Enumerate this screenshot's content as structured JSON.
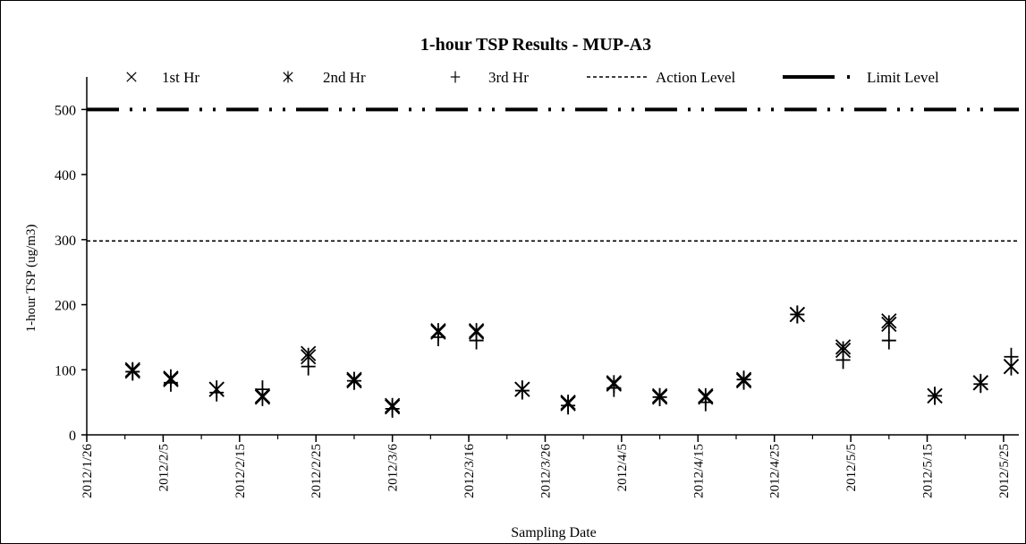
{
  "chart_data": {
    "type": "scatter",
    "title": "1-hour TSP Results - MUP-A3",
    "xlabel": "Sampling Date",
    "ylabel": "1-hour TSP (ug/m3)",
    "xlim": [
      "2012-01-26",
      "2012-05-27"
    ],
    "ylim": [
      0,
      550
    ],
    "yticks": [
      0,
      100,
      200,
      300,
      400,
      500
    ],
    "xtick_labels": [
      "2012/1/26",
      "2012/2/5",
      "2012/2/15",
      "2012/2/25",
      "2012/3/6",
      "2012/3/16",
      "2012/3/26",
      "2012/4/5",
      "2012/4/15",
      "2012/4/25",
      "2012/5/5",
      "2012/5/15",
      "2012/5/25"
    ],
    "xtick_dates": [
      "2012-01-26",
      "2012-02-05",
      "2012-02-15",
      "2012-02-25",
      "2012-03-06",
      "2012-03-16",
      "2012-03-26",
      "2012-04-05",
      "2012-04-15",
      "2012-04-25",
      "2012-05-05",
      "2012-05-15",
      "2012-05-25"
    ],
    "legend_position": "top",
    "grid": false,
    "dates": [
      "2012-02-01",
      "2012-02-06",
      "2012-02-12",
      "2012-02-18",
      "2012-02-24",
      "2012-03-01",
      "2012-03-06",
      "2012-03-12",
      "2012-03-17",
      "2012-03-23",
      "2012-03-29",
      "2012-04-04",
      "2012-04-10",
      "2012-04-16",
      "2012-04-21",
      "2012-04-28",
      "2012-05-04",
      "2012-05-10",
      "2012-05-16",
      "2012-05-22",
      "2012-05-26"
    ],
    "series": [
      {
        "name": "1st Hr",
        "marker": "x",
        "values": [
          100,
          85,
          70,
          60,
          125,
          85,
          45,
          160,
          160,
          70,
          50,
          80,
          60,
          60,
          85,
          185,
          135,
          175,
          60,
          80,
          105
        ]
      },
      {
        "name": "2nd Hr",
        "marker": "asterisk",
        "values": [
          98,
          87,
          70,
          58,
          120,
          83,
          43,
          158,
          158,
          70,
          48,
          78,
          58,
          58,
          83,
          185,
          130,
          170,
          60,
          80,
          105
        ]
      },
      {
        "name": "3rd Hr",
        "marker": "plus",
        "values": [
          97,
          80,
          65,
          70,
          105,
          83,
          40,
          150,
          145,
          68,
          45,
          72,
          58,
          50,
          85,
          185,
          115,
          145,
          60,
          78,
          120
        ]
      }
    ],
    "reference_lines": [
      {
        "name": "Action Level",
        "value": 298,
        "style": "dashed"
      },
      {
        "name": "Limit Level",
        "value": 500,
        "style": "dash-dot"
      }
    ]
  }
}
